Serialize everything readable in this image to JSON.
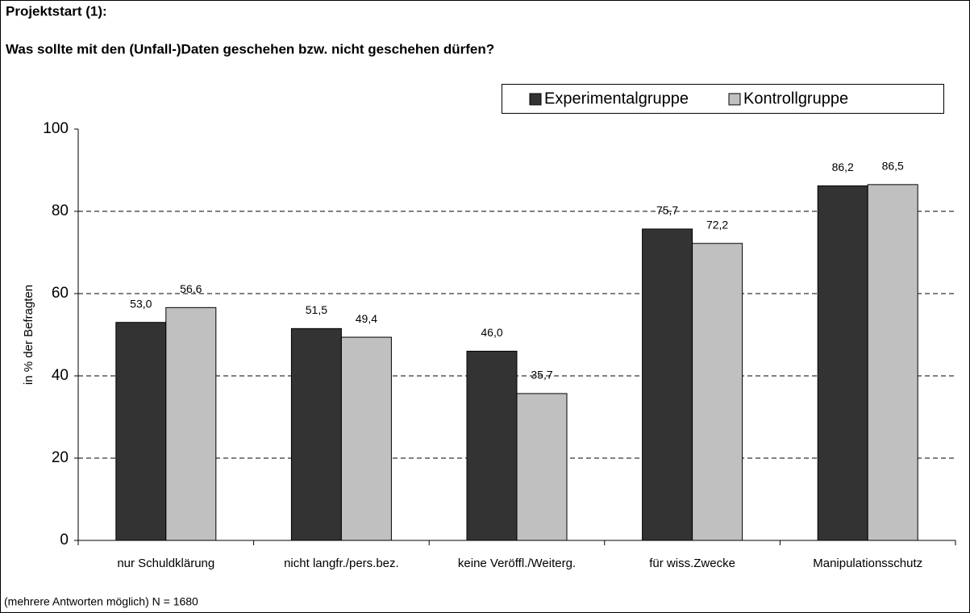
{
  "chart_data": {
    "type": "bar",
    "title": "Projektstart (1):",
    "subtitle": "Was sollte mit den (Unfall-)Daten geschehen bzw. nicht geschehen dürfen?",
    "y_label": "in % der Befragten",
    "footnote": "(mehrere Antworten möglich)  N = 1680",
    "categories": [
      "nur Schuldklärung",
      "nicht langfr./pers.bez.",
      "keine Veröffl./Weiterg.",
      "für wiss.Zwecke",
      "Manipulationsschutz"
    ],
    "series": [
      {
        "name": "Experimentalgruppe",
        "color": "#333333",
        "values": [
          53.0,
          51.5,
          46.0,
          75.7,
          86.2
        ],
        "value_labels": [
          "53,0",
          "51,5",
          "46,0",
          "75,7",
          "86,2"
        ]
      },
      {
        "name": "Kontrollgruppe",
        "color": "#c0c0c0",
        "values": [
          56.6,
          49.4,
          35.7,
          72.2,
          86.5
        ],
        "value_labels": [
          "56,6",
          "49,4",
          "35,7",
          "72,2",
          "86,5"
        ]
      }
    ],
    "ylim": [
      0,
      100
    ],
    "yticks": [
      0,
      20,
      40,
      60,
      80,
      100
    ],
    "grid": true,
    "legend": "top-right"
  }
}
